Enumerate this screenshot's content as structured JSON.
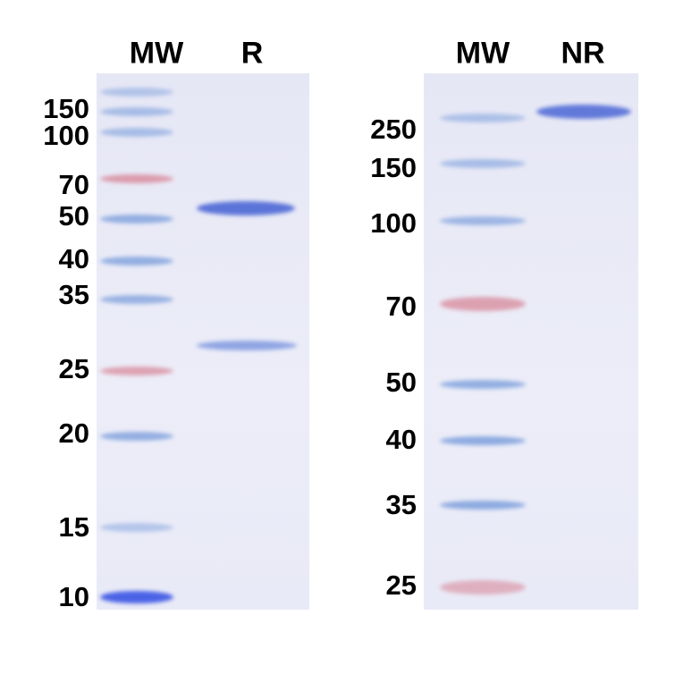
{
  "left_gel": {
    "lanes": [
      "MW",
      "R"
    ],
    "markers": [
      "150",
      "100",
      "70",
      "50",
      "40",
      "35",
      "25",
      "20",
      "15",
      "10"
    ]
  },
  "right_gel": {
    "lanes": [
      "MW",
      "NR"
    ],
    "markers": [
      "250",
      "150",
      "100",
      "70",
      "50",
      "40",
      "35",
      "25"
    ]
  },
  "colors": {
    "gel": "#e8e9f6",
    "band_blue": "#5b74d8",
    "marker_blue": "#7d9fdc",
    "marker_red": "#d8899a"
  }
}
